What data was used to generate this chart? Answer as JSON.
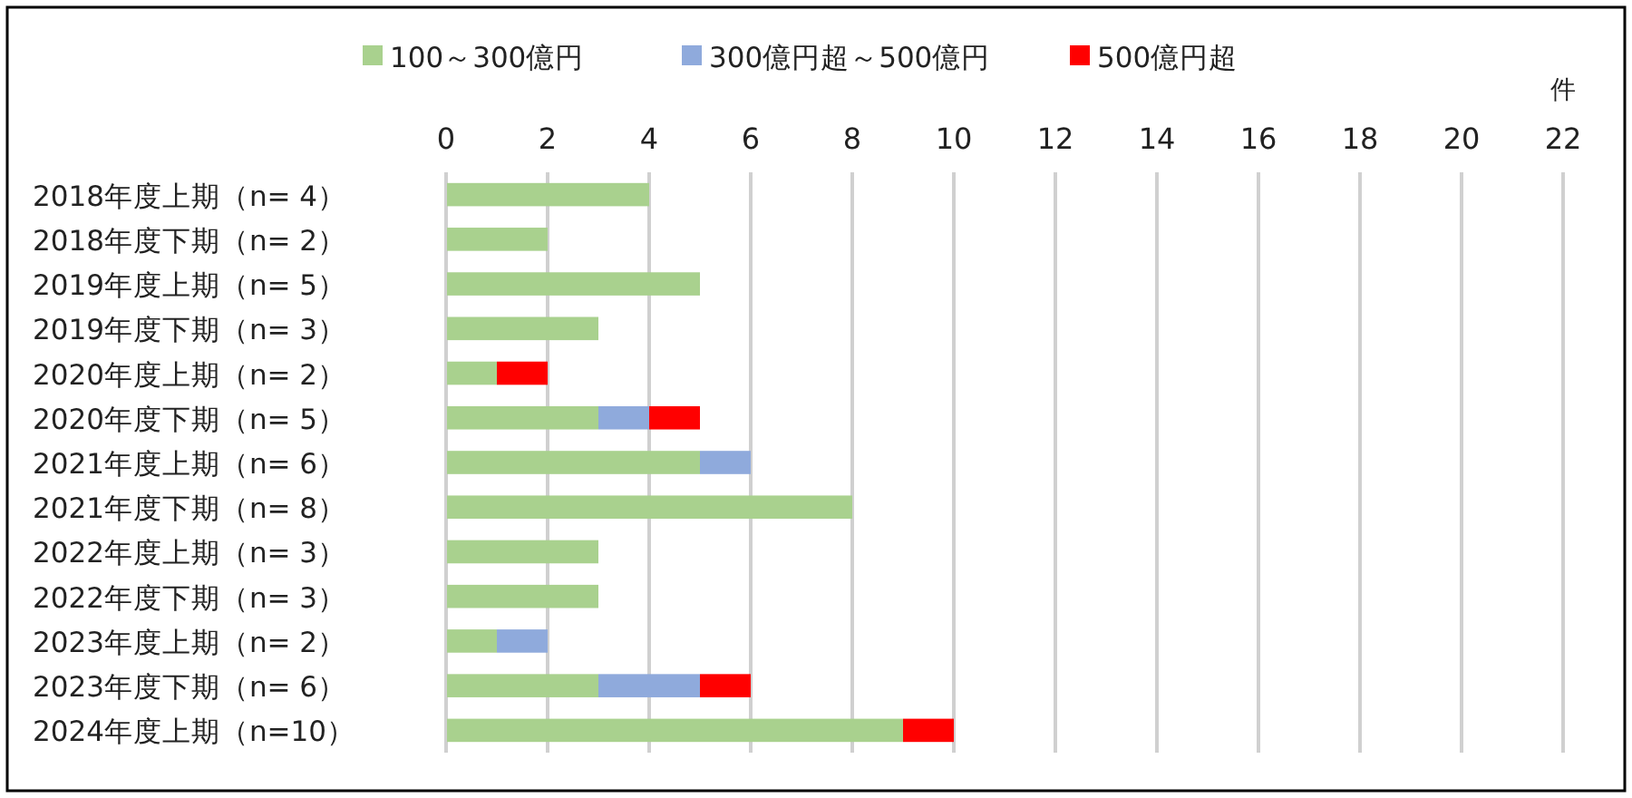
{
  "chart_data": {
    "type": "bar",
    "orientation": "horizontal",
    "stacked": true,
    "categories": [
      "2018年度上期（n= 4）",
      "2018年度下期（n= 2）",
      "2019年度上期（n= 5）",
      "2019年度下期（n= 3）",
      "2020年度上期（n= 2）",
      "2020年度下期（n= 5）",
      "2021年度上期（n= 6）",
      "2021年度下期（n= 8）",
      "2022年度上期（n= 3）",
      "2022年度下期（n= 3）",
      "2023年度上期（n= 2）",
      "2023年度下期（n= 6）",
      "2024年度上期（n=10）"
    ],
    "series": [
      {
        "name": "100～300億円",
        "color": "#a9d18e",
        "values": [
          4,
          2,
          5,
          3,
          1,
          3,
          5,
          8,
          3,
          3,
          1,
          3,
          9
        ]
      },
      {
        "name": "300億円超～500億円",
        "color": "#8faadc",
        "values": [
          0,
          0,
          0,
          0,
          0,
          1,
          1,
          0,
          0,
          0,
          1,
          2,
          0
        ]
      },
      {
        "name": "500億円超",
        "color": "#ff0000",
        "values": [
          0,
          0,
          0,
          0,
          1,
          1,
          0,
          0,
          0,
          0,
          0,
          1,
          1
        ]
      }
    ],
    "xlim": [
      0,
      22
    ],
    "xticks": [
      0,
      2,
      4,
      6,
      8,
      10,
      12,
      14,
      16,
      18,
      20,
      22
    ],
    "xlabel": "件",
    "grid": "x",
    "legend": "top"
  }
}
